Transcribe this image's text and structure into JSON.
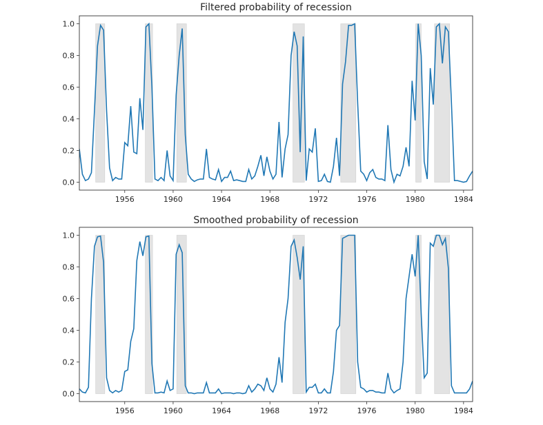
{
  "chart_data": [
    {
      "type": "line",
      "title": "Filtered probability of recession",
      "xlabel": "",
      "ylabel": "",
      "x_start": 1952.25,
      "x_step": 0.25,
      "xlim": [
        1952.25,
        1984.75
      ],
      "ylim": [
        -0.05,
        1.05
      ],
      "xticks": [
        1956,
        1960,
        1964,
        1968,
        1972,
        1976,
        1980,
        1984
      ],
      "xtick_labels": [
        "1956",
        "1960",
        "1964",
        "1968",
        "1972",
        "1976",
        "1980",
        "1984"
      ],
      "yticks": [
        0,
        0.2,
        0.4,
        0.6,
        0.8,
        1.0
      ],
      "ytick_labels": [
        "0.0",
        "0.2",
        "0.4",
        "0.6",
        "0.8",
        "1.0"
      ],
      "color": "#1f77b4",
      "recessions": [
        [
          1953.6,
          1954.35
        ],
        [
          1957.7,
          1958.3
        ],
        [
          1960.3,
          1961.1
        ],
        [
          1969.9,
          1970.85
        ],
        [
          1973.85,
          1975.1
        ],
        [
          1980.05,
          1980.5
        ],
        [
          1981.6,
          1982.85
        ]
      ],
      "values": [
        0.21,
        0.05,
        0.01,
        0.02,
        0.06,
        0.45,
        0.86,
        0.99,
        0.96,
        0.45,
        0.09,
        0.01,
        0.03,
        0.02,
        0.02,
        0.25,
        0.23,
        0.48,
        0.19,
        0.18,
        0.53,
        0.33,
        0.98,
        1.0,
        0.6,
        0.02,
        0.01,
        0.03,
        0.01,
        0.2,
        0.04,
        0.01,
        0.55,
        0.8,
        0.97,
        0.3,
        0.05,
        0.02,
        0.005,
        0.015,
        0.02,
        0.02,
        0.21,
        0.03,
        0.02,
        0.015,
        0.08,
        0.005,
        0.03,
        0.03,
        0.07,
        0.01,
        0.015,
        0.01,
        0.005,
        0.005,
        0.08,
        0.02,
        0.04,
        0.1,
        0.17,
        0.04,
        0.16,
        0.07,
        0.02,
        0.05,
        0.38,
        0.03,
        0.21,
        0.3,
        0.8,
        0.95,
        0.86,
        0.19,
        0.92,
        0.01,
        0.21,
        0.19,
        0.34,
        0.005,
        0.01,
        0.05,
        0.005,
        0.0,
        0.1,
        0.28,
        0.04,
        0.62,
        0.76,
        0.99,
        0.99,
        1.0,
        0.5,
        0.07,
        0.05,
        0.01,
        0.06,
        0.08,
        0.03,
        0.02,
        0.02,
        0.01,
        0.36,
        0.08,
        0.0,
        0.05,
        0.04,
        0.1,
        0.22,
        0.1,
        0.64,
        0.39,
        1.0,
        0.8,
        0.13,
        0.02,
        0.72,
        0.49,
        0.98,
        1.0,
        0.75,
        0.98,
        0.95,
        0.5,
        0.01,
        0.01,
        0.005,
        0.0,
        0.005,
        0.04,
        0.07
      ]
    },
    {
      "type": "line",
      "title": "Smoothed probability of recession",
      "xlabel": "",
      "ylabel": "",
      "x_start": 1952.25,
      "x_step": 0.25,
      "xlim": [
        1952.25,
        1984.75
      ],
      "ylim": [
        -0.05,
        1.05
      ],
      "xticks": [
        1956,
        1960,
        1964,
        1968,
        1972,
        1976,
        1980,
        1984
      ],
      "xtick_labels": [
        "1956",
        "1960",
        "1964",
        "1968",
        "1972",
        "1976",
        "1980",
        "1984"
      ],
      "yticks": [
        0,
        0.2,
        0.4,
        0.6,
        0.8,
        1.0
      ],
      "ytick_labels": [
        "0.0",
        "0.2",
        "0.4",
        "0.6",
        "0.8",
        "1.0"
      ],
      "color": "#1f77b4",
      "recessions": [
        [
          1953.6,
          1954.35
        ],
        [
          1957.7,
          1958.3
        ],
        [
          1960.3,
          1961.1
        ],
        [
          1969.9,
          1970.85
        ],
        [
          1973.85,
          1975.1
        ],
        [
          1980.05,
          1980.5
        ],
        [
          1981.6,
          1982.85
        ]
      ],
      "values": [
        0.03,
        0.01,
        0.005,
        0.04,
        0.6,
        0.93,
        0.99,
        0.995,
        0.83,
        0.1,
        0.02,
        0.005,
        0.02,
        0.01,
        0.02,
        0.14,
        0.15,
        0.33,
        0.41,
        0.84,
        0.96,
        0.87,
        0.99,
        0.995,
        0.19,
        0.005,
        0.005,
        0.01,
        0.005,
        0.08,
        0.02,
        0.03,
        0.88,
        0.94,
        0.89,
        0.05,
        0.005,
        0.005,
        0.0,
        0.005,
        0.005,
        0.005,
        0.07,
        0.005,
        0.005,
        0.005,
        0.03,
        0.0,
        0.005,
        0.005,
        0.005,
        0.0,
        0.005,
        0.005,
        0.0,
        0.005,
        0.05,
        0.01,
        0.03,
        0.06,
        0.05,
        0.02,
        0.1,
        0.03,
        0.01,
        0.06,
        0.23,
        0.07,
        0.45,
        0.6,
        0.93,
        0.97,
        0.86,
        0.72,
        0.93,
        0.01,
        0.04,
        0.04,
        0.06,
        0.005,
        0.005,
        0.03,
        0.005,
        0.005,
        0.14,
        0.4,
        0.43,
        0.98,
        0.99,
        1.0,
        1.0,
        1.0,
        0.2,
        0.04,
        0.03,
        0.01,
        0.02,
        0.02,
        0.01,
        0.01,
        0.005,
        0.005,
        0.13,
        0.03,
        0.005,
        0.02,
        0.03,
        0.2,
        0.6,
        0.74,
        0.88,
        0.74,
        1.0,
        0.5,
        0.1,
        0.13,
        0.95,
        0.93,
        1.0,
        1.0,
        0.94,
        0.98,
        0.79,
        0.05,
        0.005,
        0.005,
        0.005,
        0.005,
        0.005,
        0.03,
        0.08
      ]
    }
  ]
}
